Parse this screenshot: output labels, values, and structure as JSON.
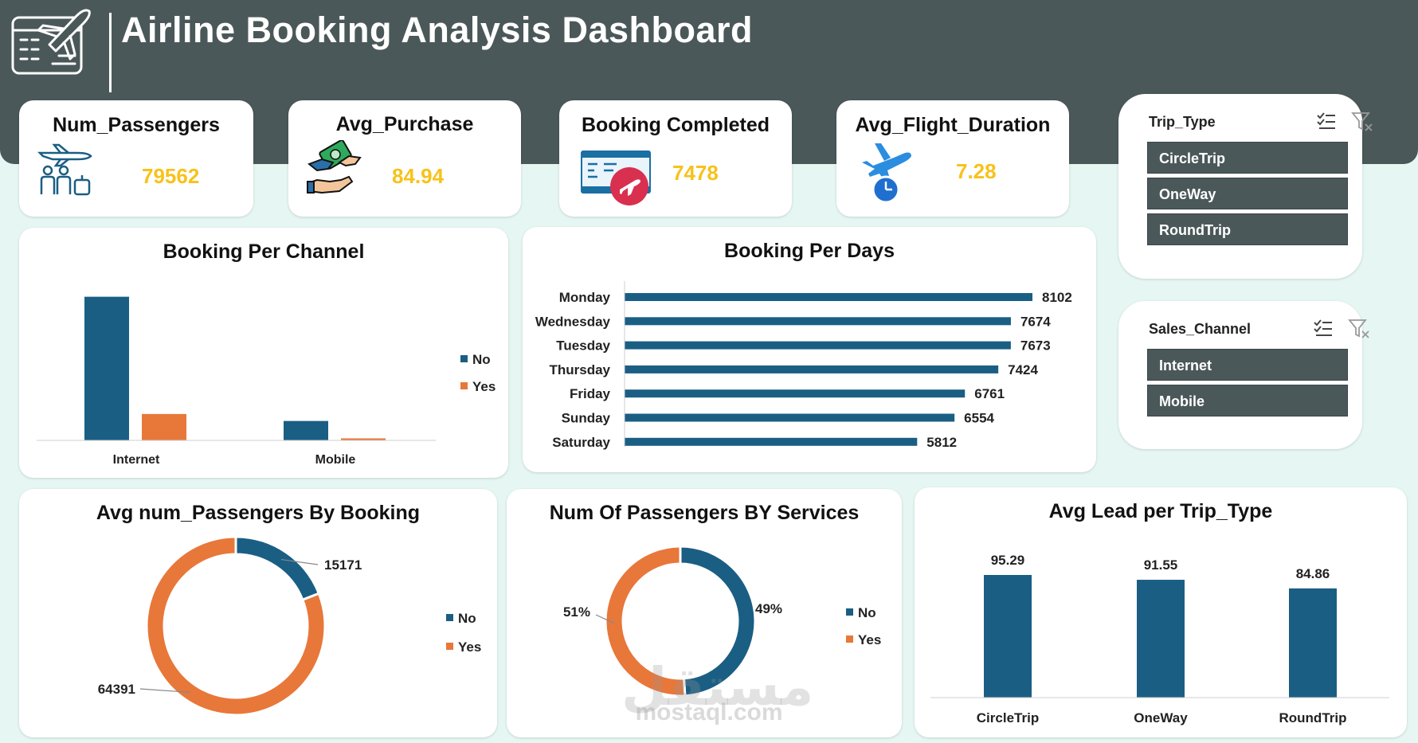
{
  "page": {
    "title": "Airline Booking Analysis Dashboard"
  },
  "colors": {
    "header": "#4b5859",
    "background": "#e6f7f3",
    "series_no": "#1a5e84",
    "series_yes": "#e8773a",
    "kpi_value": "#f7c21a"
  },
  "kpis": [
    {
      "label": "Num_Passengers",
      "value": "79562",
      "icon": "passengers-icon"
    },
    {
      "label": "Avg_Purchase",
      "value": "84.94",
      "icon": "money-handshake-icon"
    },
    {
      "label": "Booking Completed",
      "value": "7478",
      "icon": "ticket-icon"
    },
    {
      "label": "Avg_Flight_Duration",
      "value": "7.28",
      "icon": "plane-clock-icon"
    }
  ],
  "slicers": {
    "trip_type": {
      "title": "Trip_Type",
      "items": [
        "CircleTrip",
        "OneWay",
        "RoundTrip"
      ]
    },
    "sales_channel": {
      "title": "Sales_Channel",
      "items": [
        "Internet",
        "Mobile"
      ]
    }
  },
  "chart_data": [
    {
      "id": "booking_per_channel",
      "type": "bar",
      "title": "Booking Per Channel",
      "categories": [
        "Internet",
        "Mobile"
      ],
      "series": [
        {
          "name": "No",
          "values": [
            37000,
            5000
          ]
        },
        {
          "name": "Yes",
          "values": [
            6800,
            520
          ]
        }
      ],
      "ylim": [
        0,
        40000
      ],
      "legend": "right",
      "grid": false
    },
    {
      "id": "booking_per_days",
      "type": "bar",
      "orientation": "horizontal",
      "title": "Booking Per Days",
      "categories": [
        "Monday",
        "Wednesday",
        "Tuesday",
        "Thursday",
        "Friday",
        "Sunday",
        "Saturday"
      ],
      "values": [
        8102,
        7674,
        7673,
        7424,
        6761,
        6554,
        5812
      ],
      "data_labels": [
        "8102",
        "7674",
        "7673",
        "7424",
        "6761",
        "6554",
        "5812"
      ],
      "xlim": [
        0,
        8102
      ],
      "grid": false
    },
    {
      "id": "avg_passengers_by_booking",
      "type": "pie",
      "donut": true,
      "title": "Avg num_Passengers By Booking",
      "labels": [
        "No",
        "Yes"
      ],
      "values": [
        15171,
        64391
      ],
      "data_labels": [
        "15171",
        "64391"
      ],
      "legend": "right"
    },
    {
      "id": "passengers_by_services",
      "type": "pie",
      "donut": true,
      "title": "Num Of Passengers BY Services",
      "labels": [
        "No",
        "Yes"
      ],
      "values": [
        49,
        51
      ],
      "data_labels": [
        "49%",
        "51%"
      ],
      "legend": "right"
    },
    {
      "id": "avg_lead_per_trip_type",
      "type": "bar",
      "title": "Avg Lead per Trip_Type",
      "categories": [
        "CircleTrip",
        "OneWay",
        "RoundTrip"
      ],
      "values": [
        95.29,
        91.55,
        84.86
      ],
      "data_labels": [
        "95.29",
        "91.55",
        "84.86"
      ],
      "ylim": [
        0,
        95.29
      ],
      "grid": false
    }
  ],
  "watermark": {
    "text_ar": "مستقل",
    "text": "mostaql.com"
  }
}
